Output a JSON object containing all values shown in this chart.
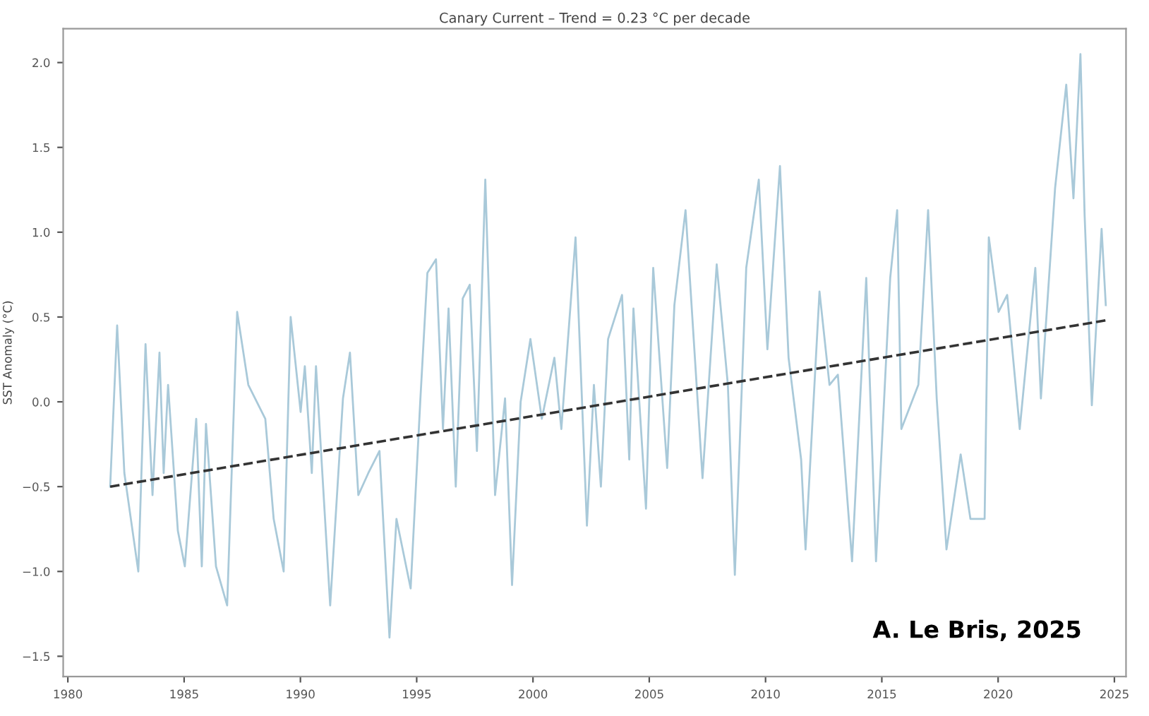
{
  "chart_data": {
    "type": "line",
    "title": "Canary Current – Trend = 0.23 °C per decade",
    "ylabel": "SST Anomaly (°C)",
    "xlim": [
      1979.8,
      2025.5
    ],
    "xticks": [
      1980,
      1985,
      1990,
      1995,
      2000,
      2005,
      2010,
      2015,
      2020,
      2025
    ],
    "ylim": [
      -1.62,
      2.2
    ],
    "yticks": [
      {
        "value": -1.5,
        "label": "−1.5"
      },
      {
        "value": -1,
        "label": "−1.0"
      },
      {
        "value": -0.5,
        "label": "−0.5"
      },
      {
        "value": 0,
        "label": "0.0"
      },
      {
        "value": 0.5,
        "label": "0.5"
      },
      {
        "value": 1,
        "label": "1.0"
      },
      {
        "value": 1.5,
        "label": "1.5"
      },
      {
        "value": 2,
        "label": "2.0"
      }
    ],
    "grid": false,
    "legend": false,
    "series": [
      {
        "color": "#a9c9d9",
        "line_style": "solid",
        "x": [
          1981.82,
          1982.12,
          1982.43,
          1983.03,
          1983.34,
          1983.64,
          1983.94,
          1984.12,
          1984.31,
          1984.73,
          1985.03,
          1985.52,
          1985.76,
          1985.94,
          1986.37,
          1986.85,
          1987.28,
          1987.76,
          1988.49,
          1988.85,
          1989.28,
          1989.58,
          1990.01,
          1990.19,
          1990.49,
          1990.67,
          1991.28,
          1991.83,
          1992.13,
          1992.49,
          1992.92,
          1993.4,
          1993.83,
          1994.13,
          1994.74,
          1995.16,
          1995.46,
          1995.83,
          1996.13,
          1996.37,
          1996.68,
          1996.98,
          1997.28,
          1997.59,
          1997.95,
          1998.37,
          1998.8,
          1999.1,
          1999.47,
          1999.89,
          2000.38,
          2000.92,
          2001.22,
          2001.83,
          2002.32,
          2002.62,
          2002.92,
          2003.23,
          2003.83,
          2004.14,
          2004.32,
          2004.86,
          2005.17,
          2005.77,
          2006.08,
          2006.56,
          2007.29,
          2007.9,
          2008.38,
          2008.68,
          2009.17,
          2009.71,
          2010.08,
          2010.62,
          2010.99,
          2011.53,
          2011.72,
          2012.32,
          2012.75,
          2013.11,
          2013.72,
          2014.33,
          2014.75,
          2015.36,
          2015.66,
          2015.84,
          2016.57,
          2016.99,
          2017.36,
          2017.78,
          2018.39,
          2018.81,
          2019.42,
          2019.6,
          2020.02,
          2020.39,
          2020.93,
          2021.6,
          2021.84,
          2022.45,
          2022.93,
          2023.24,
          2023.54,
          2023.72,
          2024.03,
          2024.45,
          2024.63
        ],
        "values": [
          -0.5,
          0.45,
          -0.42,
          -1.0,
          0.34,
          -0.55,
          0.29,
          -0.42,
          0.1,
          -0.76,
          -0.97,
          -0.1,
          -0.97,
          -0.13,
          -0.97,
          -1.2,
          0.53,
          0.1,
          -0.1,
          -0.69,
          -1.0,
          0.5,
          -0.06,
          0.21,
          -0.42,
          0.21,
          -1.2,
          0.02,
          0.29,
          -0.55,
          -0.42,
          -0.29,
          -1.39,
          -0.69,
          -1.1,
          0.02,
          0.76,
          0.84,
          -0.16,
          0.55,
          -0.5,
          0.61,
          0.69,
          -0.29,
          1.31,
          -0.55,
          0.02,
          -1.08,
          0.0,
          0.37,
          -0.1,
          0.26,
          -0.16,
          0.97,
          -0.73,
          0.1,
          -0.5,
          0.37,
          0.63,
          -0.34,
          0.55,
          -0.63,
          0.79,
          -0.39,
          0.57,
          1.13,
          -0.45,
          0.81,
          0.1,
          -1.02,
          0.79,
          1.31,
          0.31,
          1.39,
          0.26,
          -0.34,
          -0.87,
          0.65,
          0.1,
          0.16,
          -0.94,
          0.73,
          -0.94,
          0.73,
          1.13,
          -0.16,
          0.1,
          1.13,
          0.02,
          -0.87,
          -0.31,
          -0.69,
          -0.69,
          0.97,
          0.53,
          0.63,
          -0.16,
          0.79,
          0.02,
          1.26,
          1.87,
          1.2,
          2.05,
          1.1,
          -0.02,
          1.02,
          0.57
        ]
      },
      {
        "color": "#333333",
        "line_style": "dashed",
        "x": [
          1981.82,
          2024.63
        ],
        "values": [
          -0.5,
          0.48
        ]
      }
    ],
    "annotations": [
      "A. Le Bris, 2025"
    ]
  }
}
